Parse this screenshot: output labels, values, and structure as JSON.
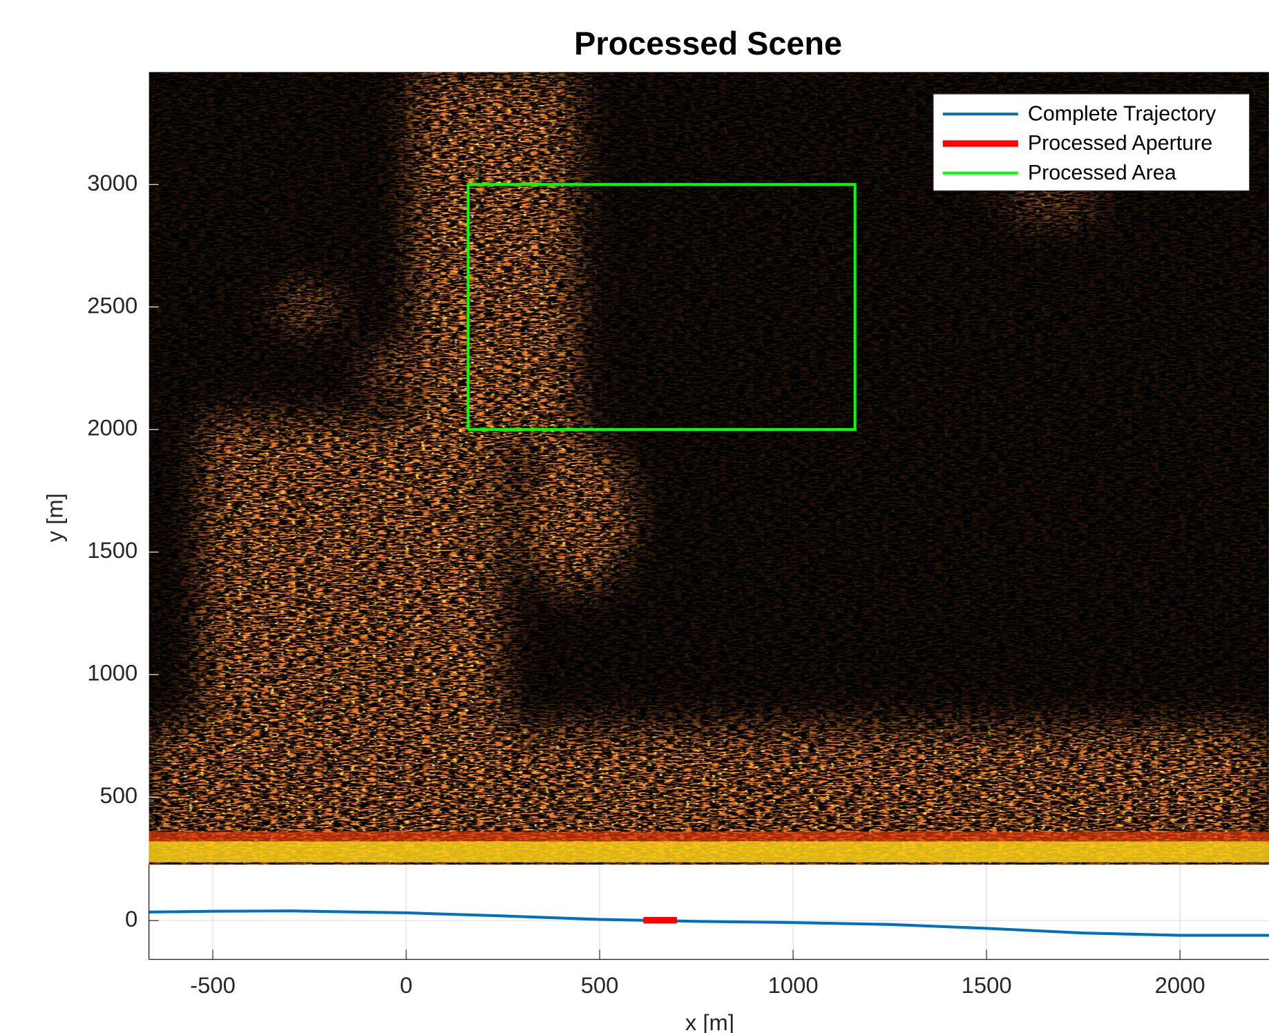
{
  "chart_data": [
    {
      "type": "image",
      "title": "Processed Scene",
      "ylabel": "y [m]",
      "xlim": [
        -665,
        2230
      ],
      "ylim": [
        224,
        3459
      ],
      "yticks": [
        500,
        1000,
        1500,
        2000,
        2500,
        3000
      ],
      "legend": "upper right",
      "series": [
        {
          "name": "Processed Area",
          "color": "#00ff00",
          "x": [
            160,
            1160,
            1160,
            160,
            160
          ],
          "values": [
            2000,
            2000,
            3000,
            3000,
            2000
          ]
        }
      ]
    },
    {
      "type": "line",
      "xlabel": "x [m]",
      "xlim": [
        -665,
        2230
      ],
      "ylim": [
        -100,
        144
      ],
      "xticks": [
        -500,
        0,
        500,
        1000,
        1500,
        2000
      ],
      "yticks": [
        0
      ],
      "grid": true,
      "series": [
        {
          "name": "Complete Trajectory",
          "color": "#0072bd",
          "x": [
            -665,
            -500,
            -300,
            0,
            250,
            500,
            750,
            1000,
            1250,
            1500,
            1750,
            2000,
            2230
          ],
          "values": [
            22,
            24,
            25,
            20,
            12,
            3,
            -2,
            -5,
            -10,
            -20,
            -32,
            -38,
            -38
          ]
        },
        {
          "name": "Processed Aperture",
          "color": "#ff0000",
          "x": [
            613,
            700
          ],
          "values": [
            1,
            1
          ]
        }
      ]
    }
  ]
}
